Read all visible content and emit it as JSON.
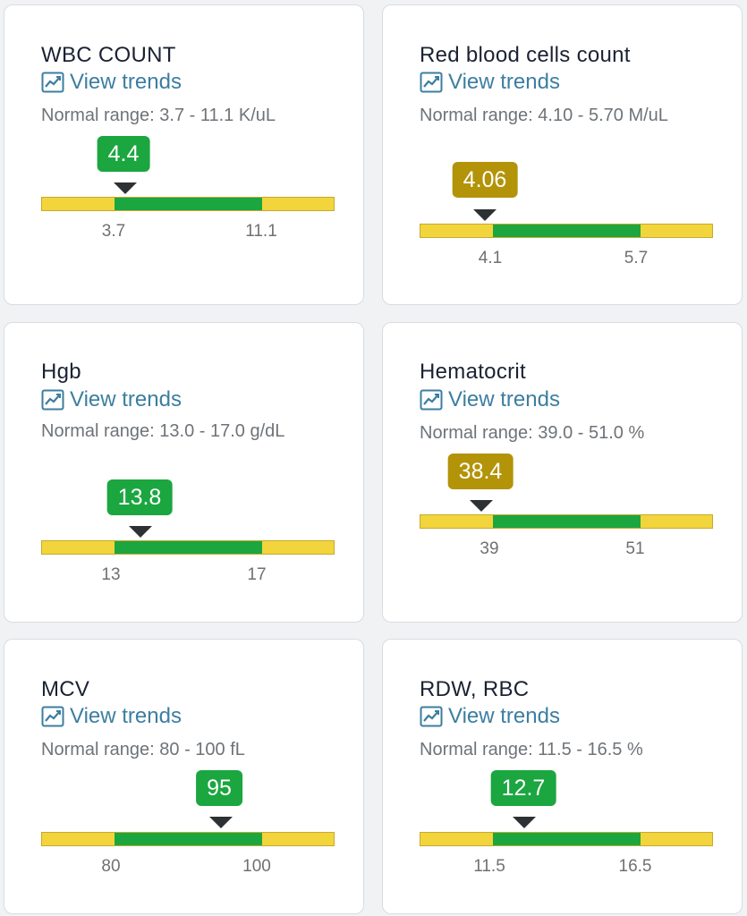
{
  "colors": {
    "in_range": "#1ba640",
    "out_of_range_band": "#f2d53c",
    "low_value": "#b39308",
    "link": "#3c7ea0"
  },
  "cards": [
    {
      "title": "WBC COUNT",
      "trend_label": "View trends",
      "range_text": "Normal range: 3.7 - 11.1 K/uL",
      "value": "4.4",
      "low_tick": "3.7",
      "high_tick": "11.1",
      "status": "normal"
    },
    {
      "title": "Red blood cells count",
      "trend_label": "View trends",
      "range_text": "Normal range: 4.10 - 5.70 M/uL",
      "value": "4.06",
      "low_tick": "4.1",
      "high_tick": "5.7",
      "status": "low"
    },
    {
      "title": "Hgb",
      "trend_label": "View trends",
      "range_text": "Normal range: 13.0 - 17.0 g/dL",
      "value": "13.8",
      "low_tick": "13",
      "high_tick": "17",
      "status": "normal"
    },
    {
      "title": "Hematocrit",
      "trend_label": "View trends",
      "range_text": "Normal range: 39.0 - 51.0 %",
      "value": "38.4",
      "low_tick": "39",
      "high_tick": "51",
      "status": "low"
    },
    {
      "title": "MCV",
      "trend_label": "View trends",
      "range_text": "Normal range: 80 - 100 fL",
      "value": "95",
      "low_tick": "80",
      "high_tick": "100",
      "status": "normal"
    },
    {
      "title": "RDW, RBC",
      "trend_label": "View trends",
      "range_text": "Normal range: 11.5 - 16.5 %",
      "value": "12.7",
      "low_tick": "11.5",
      "high_tick": "16.5",
      "status": "normal"
    }
  ]
}
